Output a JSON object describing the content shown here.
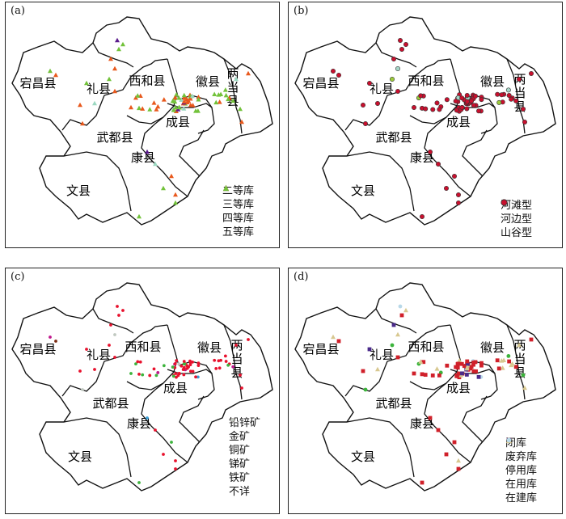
{
  "panels": [
    {
      "label": "(a)",
      "marker_shape": "triangle",
      "counties": [
        "宕昌县",
        "礼县",
        "西和县",
        "徽县",
        "两当县",
        "成县",
        "武都县",
        "康县",
        "文县"
      ],
      "legend": [
        {
          "name": "二等库",
          "color": "#5a1a8c"
        },
        {
          "name": "三等库",
          "color": "#9ad8c0"
        },
        {
          "name": "四等库",
          "color": "#e8581c"
        },
        {
          "name": "五等库",
          "color": "#72c23a"
        }
      ]
    },
    {
      "label": "(b)",
      "marker_shape": "circle",
      "counties": [
        "宕昌县",
        "礼县",
        "西和县",
        "徽县",
        "两当县",
        "成县",
        "武都县",
        "康县",
        "文县"
      ],
      "legend": [
        {
          "name": "河滩型",
          "color": "#9ccb3b"
        },
        {
          "name": "河边型",
          "color": "#a6d6c8"
        },
        {
          "name": "山谷型",
          "color": "#c8102e"
        }
      ]
    },
    {
      "label": "(c)",
      "marker_shape": "dot",
      "counties": [
        "宕昌县",
        "礼县",
        "西和县",
        "徽县",
        "两当县",
        "成县",
        "武都县",
        "康县",
        "文县"
      ],
      "legend": [
        {
          "name": "铅锌矿",
          "color": "#e8112d"
        },
        {
          "name": "金矿",
          "color": "#3cb43c"
        },
        {
          "name": "铜矿",
          "color": "#c0188c"
        },
        {
          "name": "锑矿",
          "color": "#3aa0d8"
        },
        {
          "name": "铁矿",
          "color": "#7a2a10"
        },
        {
          "name": "不详",
          "color": "#c0c8c0"
        }
      ]
    },
    {
      "label": "(d)",
      "marker_shape": "mixed",
      "counties": [
        "宕昌县",
        "礼县",
        "西和县",
        "徽县",
        "两当县",
        "成县",
        "武都县",
        "康县",
        "文县"
      ],
      "legend": [
        {
          "name": "闭库",
          "color": "#d0202a",
          "shape": "square"
        },
        {
          "name": "废弃库",
          "color": "#4a2a8a",
          "shape": "square"
        },
        {
          "name": "停用库",
          "color": "#3cb43c",
          "shape": "circle"
        },
        {
          "name": "在用库",
          "color": "#d8c890",
          "shape": "triangle"
        },
        {
          "name": "在建库",
          "color": "#b8d8e8",
          "shape": "circle"
        }
      ]
    }
  ]
}
